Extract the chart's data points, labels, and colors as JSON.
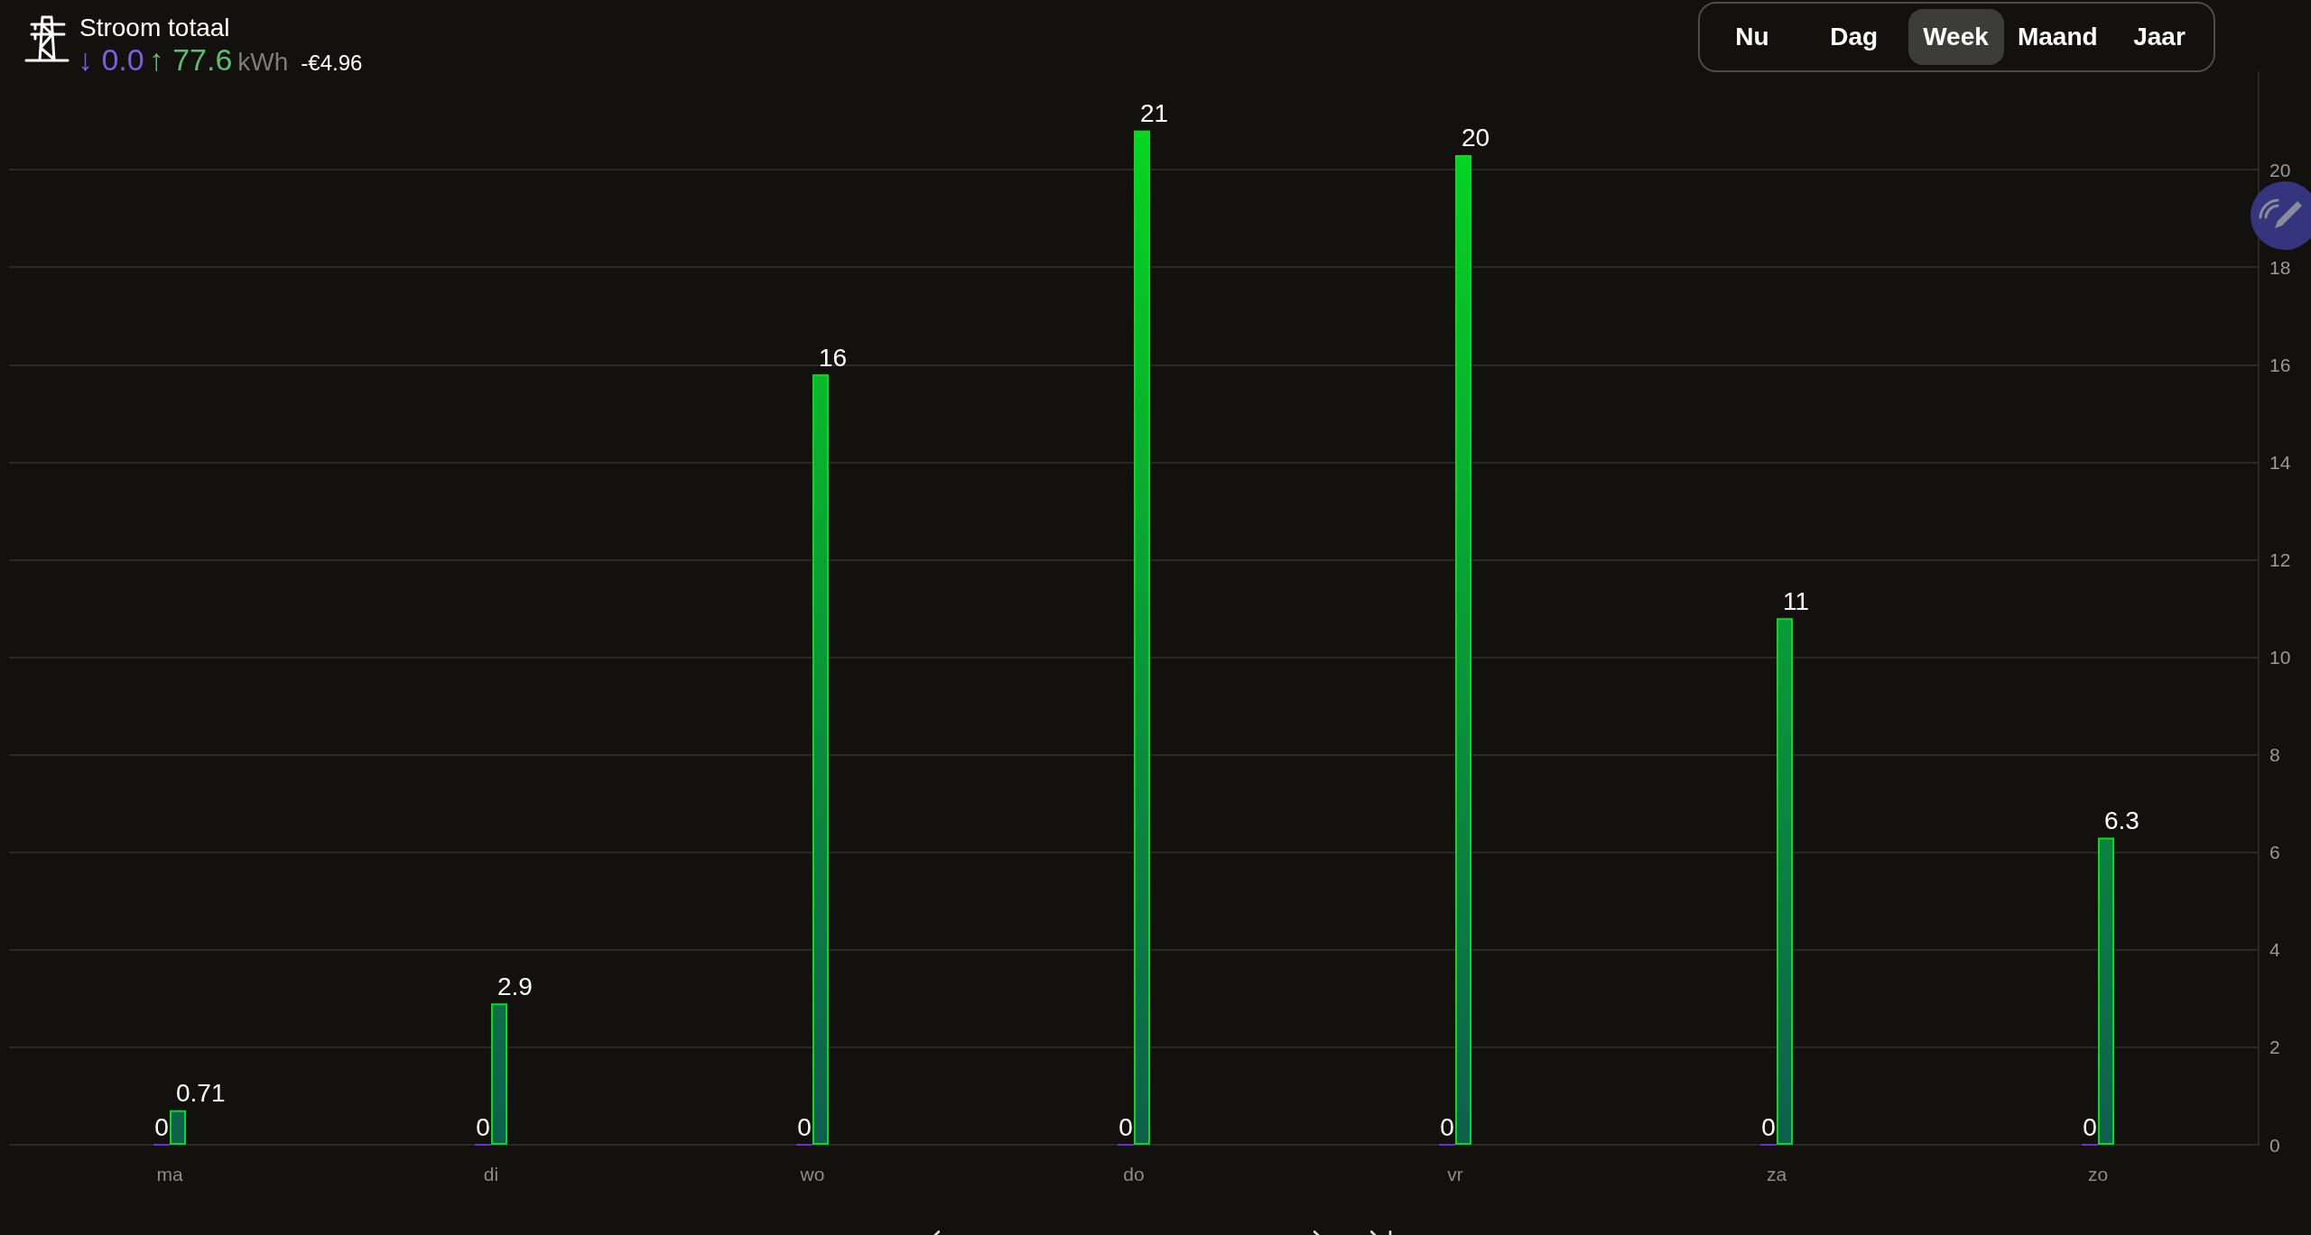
{
  "chart_data": {
    "type": "bar",
    "title": "Stroom totaal",
    "annotations": [
      "↓ 0.0",
      "↑ 77.6",
      "kWh",
      "-€4.96",
      "Nu",
      "Dag",
      "Week",
      "Maand",
      "Jaar"
    ],
    "categories": [
      "ma",
      "di",
      "wo",
      "do",
      "vr",
      "za",
      "zo"
    ],
    "series": [
      {
        "color": "#6b2fd6",
        "values": [
          0,
          0,
          0,
          0,
          0,
          0,
          0
        ],
        "value_labels": [
          "0",
          "0",
          "0",
          "0",
          "0",
          "0",
          "0"
        ]
      },
      {
        "color": "#05dc1e",
        "values": [
          0.71,
          2.9,
          15.8,
          20.8,
          20.3,
          10.8,
          6.3
        ],
        "value_labels": [
          "0.71",
          "2.9",
          "16",
          "21",
          "20",
          "11",
          "6.3"
        ]
      }
    ],
    "ylim": [
      0,
      22
    ],
    "yticks": [
      0,
      2,
      4,
      6,
      8,
      10,
      12,
      14,
      16,
      18,
      20
    ],
    "grid": "y"
  }
}
